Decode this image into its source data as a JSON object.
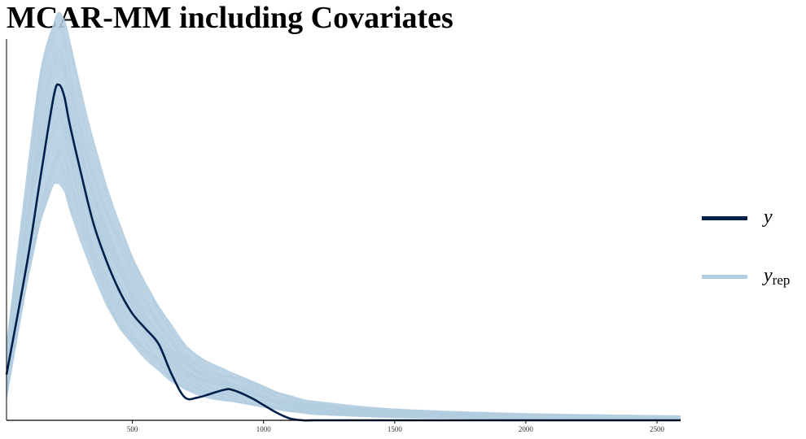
{
  "title": "MCAR-MM including Covariates",
  "colors": {
    "y": "#011f4b",
    "yrep": "#b3cde0",
    "axis": "#000000"
  },
  "legend": {
    "position": "right",
    "items": [
      {
        "key": "y",
        "label": "y",
        "sub": ""
      },
      {
        "key": "yrep",
        "label": "y",
        "sub": "rep"
      }
    ]
  },
  "chart_data": {
    "type": "area",
    "description_kind": "posterior predictive density overlay",
    "xlim": [
      20,
      2590
    ],
    "ylim": [
      0,
      1.0
    ],
    "x_ticks": [
      500,
      1000,
      1500,
      2000,
      2500
    ],
    "x_tick_labels": [
      "500",
      "1000",
      "1500",
      "2000",
      "2500"
    ],
    "yaxis_ticks_shown": false,
    "grid": false,
    "series": [
      {
        "name": "y",
        "x": [
          20,
          100,
          150,
          200,
          220,
          240,
          260,
          300,
          350,
          400,
          450,
          500,
          550,
          600,
          650,
          700,
          750,
          800,
          850,
          880,
          950,
          1000,
          1050,
          1100,
          1150,
          1200,
          1500,
          2000,
          2590
        ],
        "y": [
          0.12,
          0.42,
          0.64,
          0.85,
          0.88,
          0.85,
          0.78,
          0.66,
          0.52,
          0.42,
          0.34,
          0.28,
          0.24,
          0.2,
          0.12,
          0.06,
          0.06,
          0.07,
          0.08,
          0.08,
          0.06,
          0.04,
          0.02,
          0.005,
          0.0,
          0.0,
          0.0,
          0.0,
          0.0
        ]
      },
      {
        "name": "yrep",
        "x": [
          20,
          100,
          150,
          200,
          220,
          240,
          260,
          300,
          350,
          400,
          450,
          500,
          550,
          600,
          650,
          700,
          750,
          800,
          850,
          880,
          950,
          1000,
          1050,
          1100,
          1150,
          1200,
          1500,
          2000,
          2590
        ],
        "y_lower": [
          0.05,
          0.36,
          0.52,
          0.62,
          0.62,
          0.6,
          0.55,
          0.47,
          0.38,
          0.3,
          0.24,
          0.2,
          0.16,
          0.13,
          0.1,
          0.08,
          0.065,
          0.055,
          0.05,
          0.048,
          0.04,
          0.034,
          0.028,
          0.022,
          0.018,
          0.014,
          0.006,
          0.002,
          0.0
        ],
        "y_upper": [
          0.2,
          0.66,
          0.92,
          1.04,
          1.07,
          1.05,
          1.0,
          0.88,
          0.74,
          0.62,
          0.52,
          0.43,
          0.36,
          0.3,
          0.25,
          0.2,
          0.17,
          0.15,
          0.135,
          0.125,
          0.105,
          0.09,
          0.075,
          0.065,
          0.055,
          0.05,
          0.03,
          0.018,
          0.012
        ]
      }
    ]
  }
}
